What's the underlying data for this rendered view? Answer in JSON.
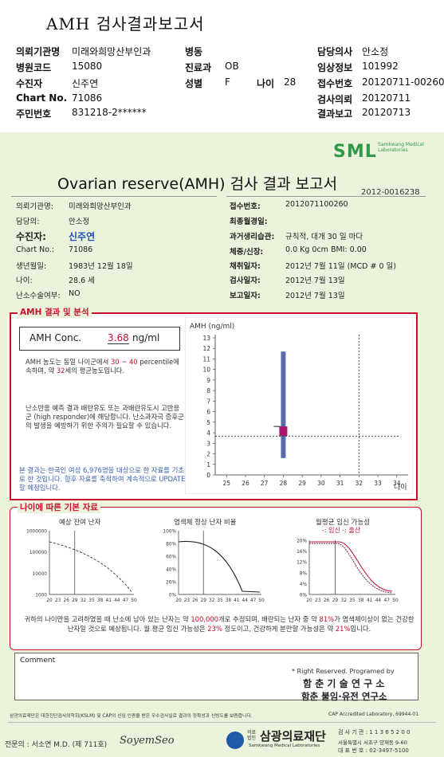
{
  "header": {
    "title": "AMH 검사결과보고서",
    "rows": [
      [
        {
          "label": "의뢰기관명",
          "value": "미래와희망산부인과"
        },
        {
          "label": "병동",
          "value": ""
        },
        {
          "label": "담당의사",
          "value": "안소정"
        }
      ],
      [
        {
          "label": "병원코드",
          "value": "15080"
        },
        {
          "label": "진료과",
          "value": "OB"
        },
        {
          "label": "임상정보",
          "value": "101992"
        }
      ],
      [
        {
          "label": "수진자",
          "value": "신주연"
        },
        {
          "label": "성별",
          "value": "F"
        },
        {
          "label": "접수번호",
          "value": "20120711-00260"
        }
      ],
      [
        {
          "label": "Chart No.",
          "value": "71086"
        },
        {
          "label": "",
          "value": ""
        },
        {
          "label": "검사의뢰",
          "value": "20120711"
        }
      ],
      [
        {
          "label": "주민번호",
          "value": "831218-2******"
        },
        {
          "label": "",
          "value": ""
        },
        {
          "label": "결과보고",
          "value": "20120713"
        }
      ]
    ],
    "age_label": "나이",
    "age_value": "28"
  },
  "report": {
    "logo": "SML",
    "logo_sub": "Samkwang Medical Laboratories",
    "title": "Ovarian reserve(AMH) 검사 결과 보고서",
    "number": "2012-0016238",
    "left_info": [
      {
        "label": "의뢰기관명:",
        "value": "미래와희망산부인과"
      },
      {
        "label": "담당의:",
        "value": "안소정"
      },
      {
        "label": "수진자:",
        "value": "신주연"
      },
      {
        "label": "Chart No.:",
        "value": "71086"
      },
      {
        "label": "생년월일:",
        "value": "1983년 12월 18일"
      },
      {
        "label": "나이:",
        "value": "28.6 세"
      },
      {
        "label": "난소수술여부:",
        "value": "NO"
      }
    ],
    "right_info": [
      {
        "label": "접수번호:",
        "value": "2012071100260"
      },
      {
        "label": "최종월경일:",
        "value": ""
      },
      {
        "label": "과거생리습관:",
        "value": "규칙적, 대개   30 일 마다"
      },
      {
        "label": "체중/신장:",
        "value": "0.0 Kg        0cm   BMI:   0.00"
      },
      {
        "label": "채취일자:",
        "value": "2012년 7월 11일   (MCD # 0 일)"
      },
      {
        "label": "검사일자:",
        "value": "2012년 7월 13일"
      },
      {
        "label": "보고일자:",
        "value": "2012년 7월 13일"
      }
    ]
  },
  "amh": {
    "section_title": "AMH 결과 및 분석",
    "conc_label": "AMH Conc.",
    "conc_value": "3.68",
    "conc_unit": "ng/ml",
    "para1_a": "AMH 농도는 동일 나이군에서",
    "para1_range": "30 ~ 40",
    "para1_b": "percentile에 속하며, 약",
    "para1_age": "32",
    "para1_c": "세의 평균농도입니다.",
    "para2": "난소반응 예측 결과 배란유도 또는 과배란유도시 고반응군 (high responder)에 해당합니다. 난소과자극 증후군의 발생을 예방하기 위한 주의가 필요할 수 있습니다.",
    "para3": "본 결과는 한국인 여성 6,976명을 대상으로 한 자료를 기초로 한 것입니다. 향후 자료를 축적하여 계속적으로 UPDATE할 예정입니다."
  },
  "chart_data": [
    {
      "type": "scatter",
      "ylabel": "AMH (ng/ml)",
      "xlabel": "나이",
      "x_ticks": [
        25,
        26,
        27,
        28,
        29,
        30,
        31,
        32,
        33,
        34
      ],
      "y_ticks": [
        0,
        1,
        2,
        3,
        4,
        5,
        6,
        7,
        8,
        9,
        10,
        11,
        12,
        13
      ],
      "xlim": [
        24.4,
        34.6
      ],
      "ylim": [
        0,
        13
      ],
      "range_bar": {
        "x": 28,
        "low": 1.6,
        "high": 11.7
      },
      "iqr_box": {
        "x": 28,
        "low": 3.7,
        "high": 4.6
      },
      "median_tick": 4.6,
      "point": {
        "x": 32,
        "y": 3.68
      },
      "grid": false
    },
    {
      "type": "line",
      "title": "예상 잔여 난자",
      "x_ticks": [
        20,
        23,
        26,
        29,
        32,
        35,
        38,
        41,
        44,
        47,
        50
      ],
      "y_ticks": [
        "1000000",
        "100000",
        "10000",
        "1000"
      ],
      "y_log": true,
      "marker_x": 29
    },
    {
      "type": "line",
      "title": "염색체 정상 난자 비율",
      "x_ticks": [
        20,
        23,
        26,
        29,
        32,
        35,
        38,
        41,
        44,
        47,
        50
      ],
      "y_ticks": [
        "100%",
        "80%",
        "60%",
        "40%",
        "20%",
        "0%"
      ],
      "marker_x": 29
    },
    {
      "type": "line",
      "title": "월평균 임신 가능성",
      "legend": [
        "임신",
        "출산"
      ],
      "x_ticks": [
        20,
        23,
        26,
        29,
        32,
        35,
        38,
        41,
        44,
        47,
        50
      ],
      "y_ticks": [
        "20%",
        "16%",
        "12%",
        "8%",
        "4%",
        "0%"
      ],
      "marker_x": 29
    }
  ],
  "charts_section": {
    "title": "나이에 따른 기본 자료",
    "summary_a": "귀하의 나이만을 고려하였을 때 난소에 남아 있는 난자는 약",
    "summary_eggs": "100,000",
    "summary_b": "개로 추정되며, 배란되는 난자 중 약",
    "summary_pct1": "81%",
    "summary_c": "가 염색체이상이 없는 건강한 난자일 것으로 예상됩니다. 월 평균 임신 가능성은",
    "summary_pct2": "23%",
    "summary_d": "정도이고, 건강하게 분만할 가능성은 약",
    "summary_pct3": "21%",
    "summary_e": "입니다."
  },
  "comment": {
    "label": "Comment",
    "rights": "* Right Reserved. Programed by",
    "org1": "함 춘 기 술 연 구 소",
    "org2": "함춘 불임·유전 연구소"
  },
  "footer": {
    "cert_text": "삼광의료재단은 대한진단검사의학회(KSLM) 및 CAP의 신임 인증을 받은 우수검사실로 결과의 정확성과 신빙도를 보증합니다.",
    "cap_text": "CAP Accredited Laboratory, 69944-01",
    "doctor": "전문의 : 서소연 M.D. (제 711호)",
    "signature": "SoyemSeo",
    "foundation": "삼광의료재단",
    "foundation_prefix": "의료법인",
    "foundation_en": "Samkwang Medical Laboratories",
    "inquiry": "검 사 기 관 : 1 1 3 6 5 2 0 0",
    "address": "서울특별시 서초구 양재동 9-60",
    "phone": "대 표 번 호 : 02-3497-5100"
  },
  "colors": {
    "accent_red": "#c8102e",
    "brand_green": "#2f9a4a",
    "patient_blue": "#1d4fb8",
    "bar": "#5a6ca8",
    "box": "#b0146e"
  }
}
